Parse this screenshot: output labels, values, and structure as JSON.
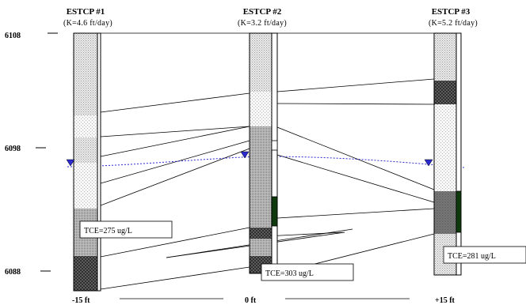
{
  "wells": [
    {
      "name": "ESTCP #1",
      "conductivity": "(K=4.6 ft/day)"
    },
    {
      "name": "ESTCP #2",
      "conductivity": "(K=3.2 ft/day)"
    },
    {
      "name": "ESTCP #3",
      "conductivity": "(K=5.2 ft/day)"
    }
  ],
  "elevation_ticks": [
    "6108",
    "6098",
    "6088"
  ],
  "distance_ticks": [
    "-15 ft",
    "0 ft",
    "+15 ft"
  ],
  "concentrations": [
    "TCE=275 ug/L",
    "TCE=303 ug/L",
    "TCE=281 ug/L"
  ],
  "colors": {
    "water_table": "#2a2ad0",
    "high_k_layer": "#0e3a0e"
  }
}
